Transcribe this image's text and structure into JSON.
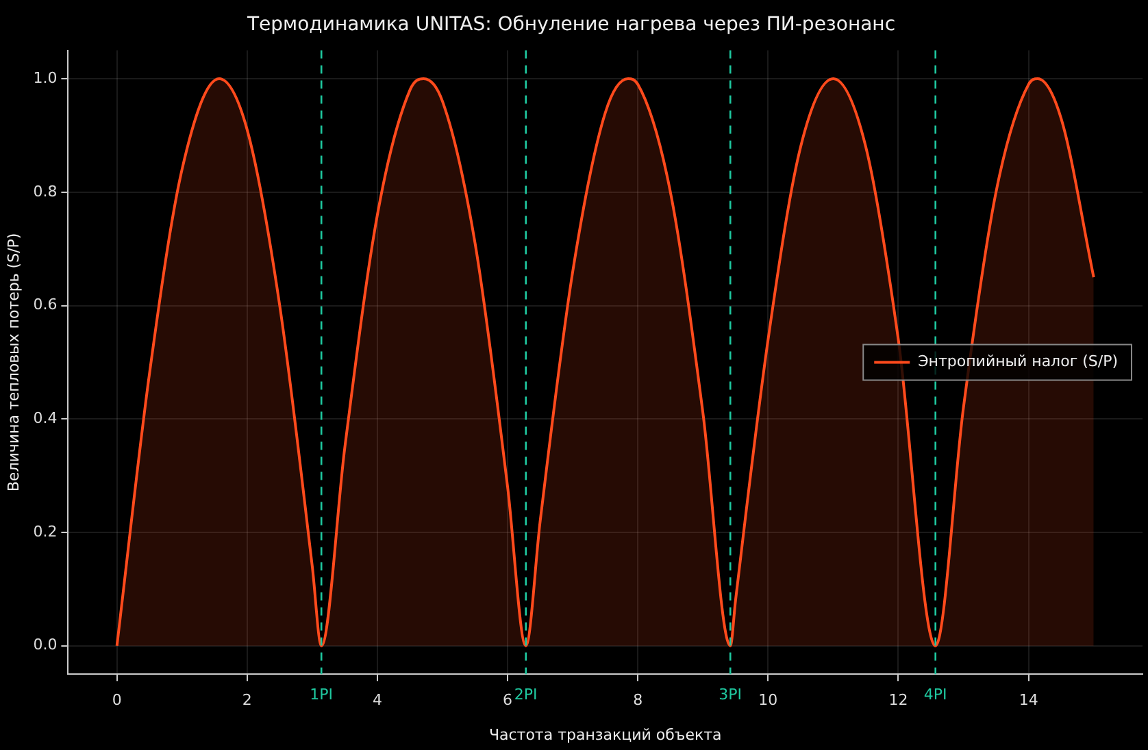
{
  "chart_data": {
    "type": "area",
    "title": "Термодинамика UNITAS: Обнуление нагрева через ПИ-резонанс",
    "xlabel": "Частота транзакций объекта",
    "ylabel": "Величина тепловых потерь (S/P)",
    "series": [
      {
        "name": "Энтропийный налог (S/P)",
        "color": "#ff4a1c",
        "x": [
          0,
          0.5,
          1,
          1.57,
          2,
          2.5,
          3,
          3.14,
          3.5,
          4,
          4.5,
          4.71,
          5,
          5.5,
          6,
          6.28,
          6.5,
          7,
          7.5,
          7.85,
          8,
          8.5,
          9,
          9.42,
          9.5,
          10,
          10.5,
          11,
          11.5,
          12,
          12.57,
          13,
          13.5,
          14,
          14.14,
          14.5,
          15
        ],
        "values": [
          0,
          0.48,
          0.84,
          1.0,
          0.91,
          0.6,
          0.14,
          0,
          0.35,
          0.76,
          0.98,
          1.0,
          0.96,
          0.71,
          0.28,
          0,
          0.22,
          0.66,
          0.94,
          1.0,
          0.99,
          0.8,
          0.41,
          0,
          0.08,
          0.54,
          0.88,
          1.0,
          0.88,
          0.54,
          0,
          0.42,
          0.8,
          0.99,
          1.0,
          0.93,
          0.65
        ]
      }
    ],
    "xlim": [
      -0.75,
      15.75
    ],
    "ylim": [
      -0.05,
      1.05
    ],
    "xticks": [
      0,
      2,
      4,
      6,
      8,
      10,
      12,
      14
    ],
    "yticks": [
      {
        "value": 0,
        "label": "0.0"
      },
      {
        "value": 0.2,
        "label": "0.2"
      },
      {
        "value": 0.4,
        "label": "0.4"
      },
      {
        "value": 0.6,
        "label": "0.6"
      },
      {
        "value": 0.8,
        "label": "0.8"
      },
      {
        "value": 1,
        "label": "1.0"
      }
    ],
    "ref_lines": [
      {
        "axis": "x",
        "value": 3.14,
        "label": "1PI",
        "color": "#1fc9a0",
        "line_style": "dashed"
      },
      {
        "axis": "x",
        "value": 6.28,
        "label": "2PI",
        "color": "#1fc9a0",
        "line_style": "dashed"
      },
      {
        "axis": "x",
        "value": 9.42,
        "label": "3PI",
        "color": "#1fc9a0",
        "line_style": "dashed"
      },
      {
        "axis": "x",
        "value": 12.57,
        "label": "4PI",
        "color": "#1fc9a0",
        "line_style": "dashed"
      }
    ],
    "grid": true,
    "legend": "right",
    "marker": "none",
    "line_style": "solid"
  }
}
